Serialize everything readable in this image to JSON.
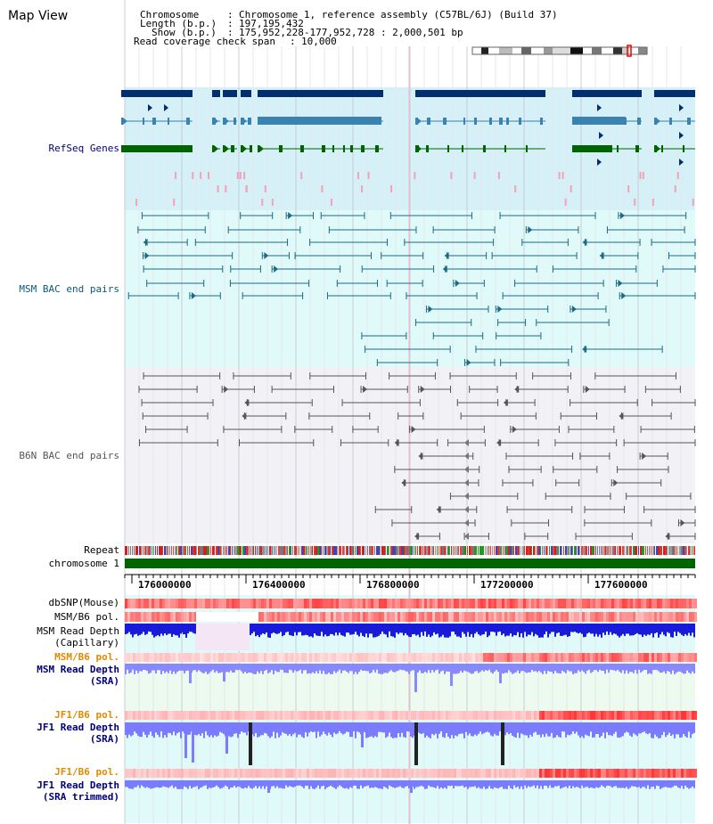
{
  "title": "Map View",
  "info": {
    "chromosome_key": "Chromosome",
    "chromosome_value": "Chromosome 1, reference assembly (C57BL/6J) (Build 37)",
    "length_key": "Length (b.p.)",
    "length_value": "197,195,432",
    "show_key": "Show (b.p.)",
    "show_value": "175,952,228-177,952,728 : 2,000,501 bp",
    "span_key": "Read coverage check span",
    "span_value": "10,000"
  },
  "tracks": {
    "refseq": "RefSeq Genes",
    "msm_bac": "MSM BAC end pairs",
    "b6n_bac": "B6N BAC end pairs",
    "repeat": "Repeat",
    "chromosome": "chromosome 1",
    "dbsnp": "dbSNP(Mouse)",
    "msm_b6_pol_1": "MSM/B6 pol.",
    "msm_depth_cap_1": "MSM Read Depth",
    "msm_depth_cap_2": "(Capillary)",
    "msm_b6_pol_2": "MSM/B6 pol.",
    "msm_depth_sra_1": "MSM Read Depth",
    "msm_depth_sra_2": "(SRA)",
    "jf1_b6_pol_1": "JF1/B6 pol.",
    "jf1_depth_sra_1": "JF1 Read Depth",
    "jf1_depth_sra_2": "(SRA)",
    "jf1_b6_pol_2": "JF1/B6 pol.",
    "jf1_depth_trim_1": "JF1 Read Depth",
    "jf1_depth_trim_2": "(SRA trimmed)"
  },
  "ruler": {
    "ticks": [
      "176000000",
      "176400000",
      "176800000",
      "177200000",
      "177600000"
    ]
  },
  "colors": {
    "gene_dark": "#002e6e",
    "gene_mid": "#3a82b0",
    "gene_green": "#006400",
    "msm_bac": "#1d6a84",
    "b6n_bac": "#555555",
    "chromosome": "#006400",
    "snp": "#ff3333",
    "depth_dark": "#1a1ad9",
    "depth_light": "#7777ff",
    "label_navy": "#00007a",
    "label_teal": "#0a5a7a",
    "label_orange": "#e08a00"
  }
}
